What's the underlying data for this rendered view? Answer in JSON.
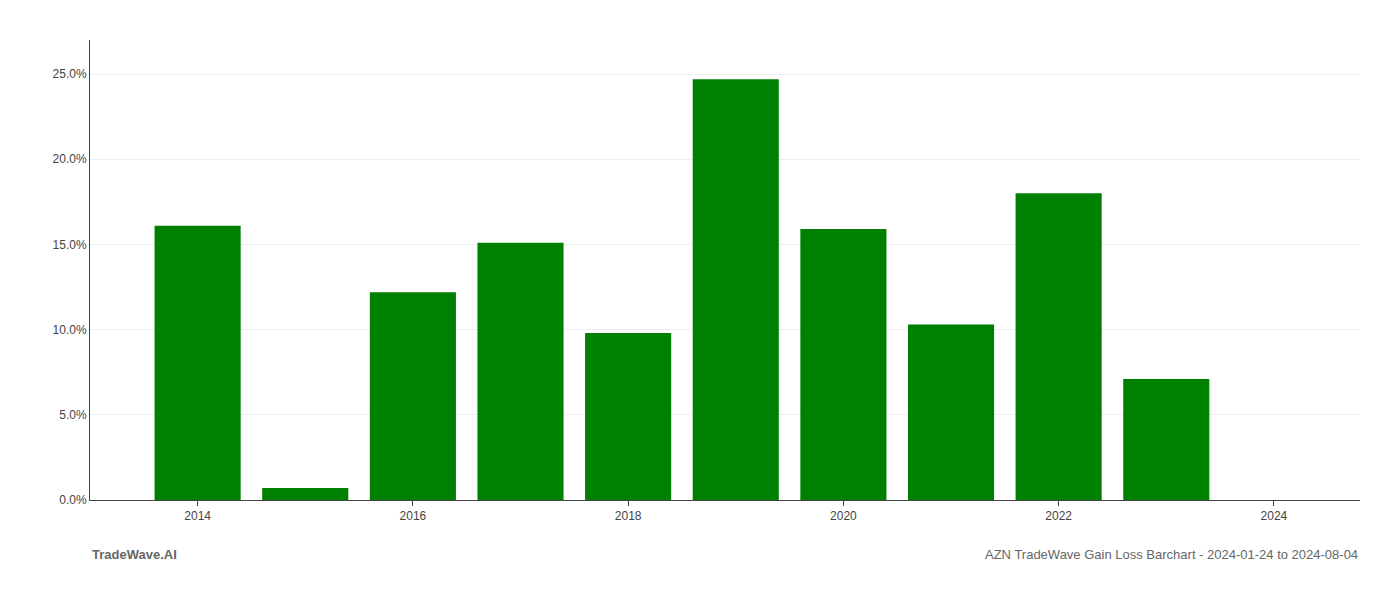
{
  "chart_data": {
    "type": "bar",
    "x": [
      2014,
      2015,
      2016,
      2017,
      2018,
      2019,
      2020,
      2021,
      2022,
      2023
    ],
    "values": [
      0.161,
      0.007,
      0.122,
      0.151,
      0.098,
      0.247,
      0.159,
      0.103,
      0.18,
      0.071
    ],
    "color": "#008000",
    "xlim": [
      2013.0,
      2024.8
    ],
    "xticks": [
      2014,
      2016,
      2018,
      2020,
      2022,
      2024
    ],
    "ylim": [
      0,
      0.27
    ],
    "yticks": [
      {
        "value": 0.0,
        "label": "0.0%"
      },
      {
        "value": 0.05,
        "label": "5.0%"
      },
      {
        "value": 0.1,
        "label": "10.0%"
      },
      {
        "value": 0.15,
        "label": "15.0%"
      },
      {
        "value": 0.2,
        "label": "20.0%"
      },
      {
        "value": 0.25,
        "label": "25.0%"
      }
    ],
    "grid": true,
    "annotations": [
      "TradeWave.AI",
      "AZN TradeWave Gain Loss Barchart - 2024-01-24 to 2024-08-04"
    ]
  }
}
